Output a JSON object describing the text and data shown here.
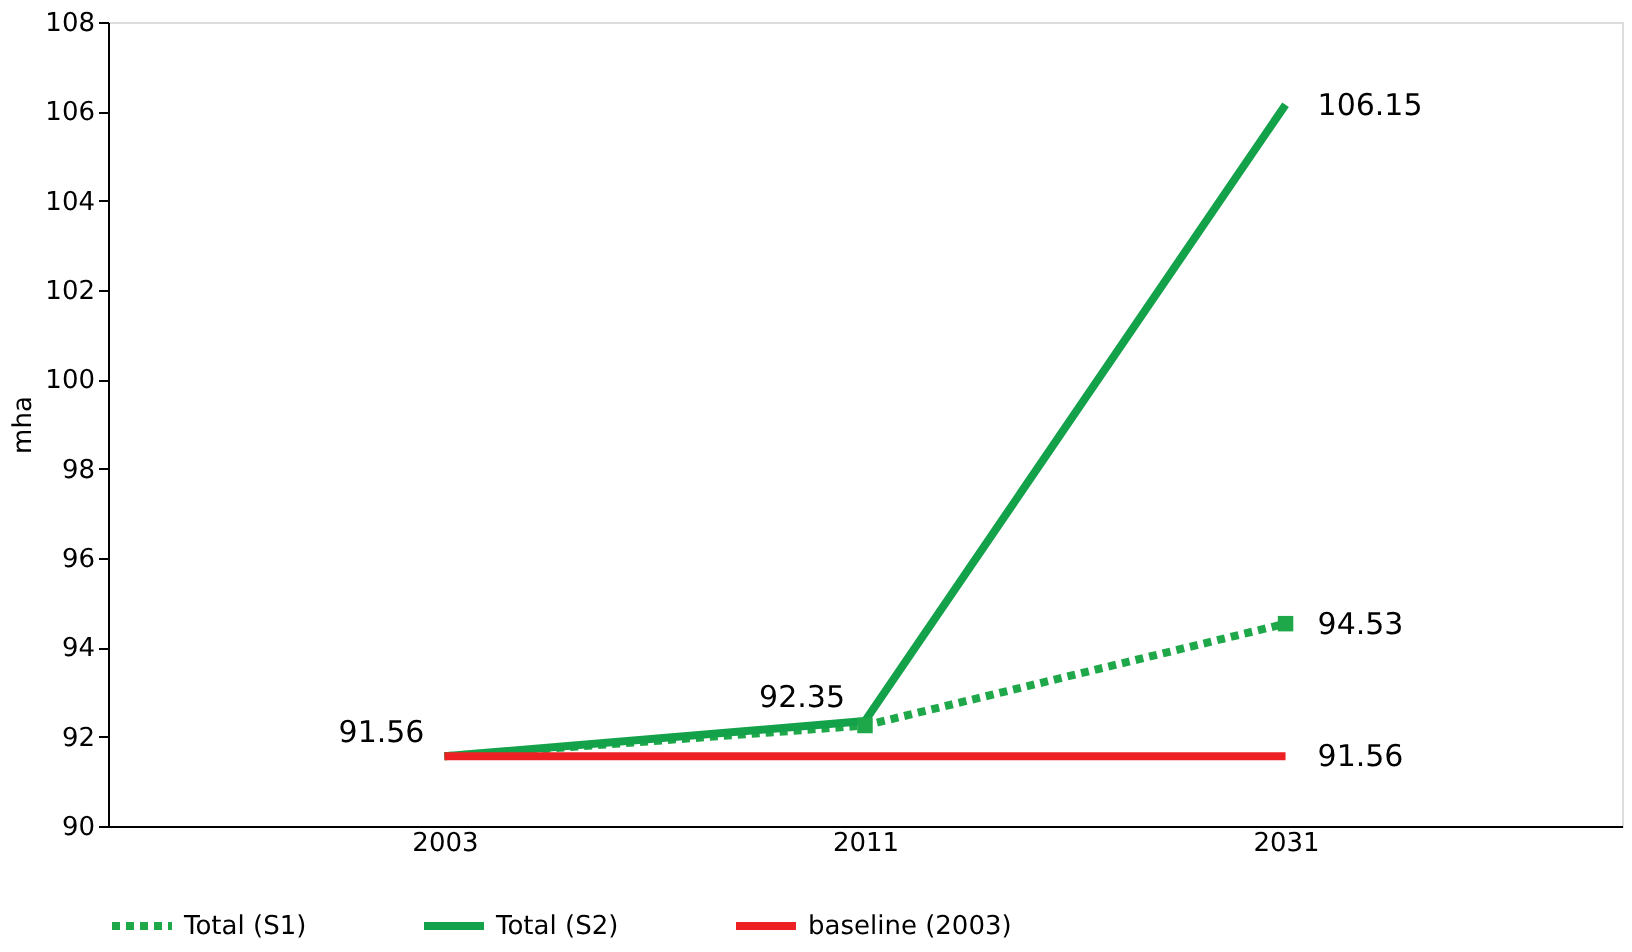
{
  "chart_data": {
    "type": "line",
    "ylabel": "mha",
    "categories": [
      "2003",
      "2011",
      "2031"
    ],
    "series": [
      {
        "name": "Total (S1)",
        "color": "#1fa84a",
        "values": [
          91.56,
          92.25,
          94.53
        ],
        "line_style": "dotted",
        "marker": "square",
        "value_labels": [
          null,
          null,
          "94.53"
        ]
      },
      {
        "name": "Total (S2)",
        "color": "#13a24a",
        "values": [
          91.56,
          92.35,
          106.15
        ],
        "line_style": "solid",
        "marker": "none",
        "value_labels": [
          "91.56",
          "92.35",
          "106.15"
        ]
      },
      {
        "name": "baseline (2003)",
        "color": "#ed2024",
        "values": [
          91.56,
          91.56,
          91.56
        ],
        "line_style": "solid",
        "marker": "none",
        "value_labels": [
          null,
          null,
          "91.56"
        ]
      }
    ],
    "ylim": [
      90,
      108
    ],
    "yticks": [
      90,
      92,
      94,
      96,
      98,
      100,
      102,
      104,
      106,
      108
    ],
    "grid": false,
    "legend": "bottom"
  }
}
